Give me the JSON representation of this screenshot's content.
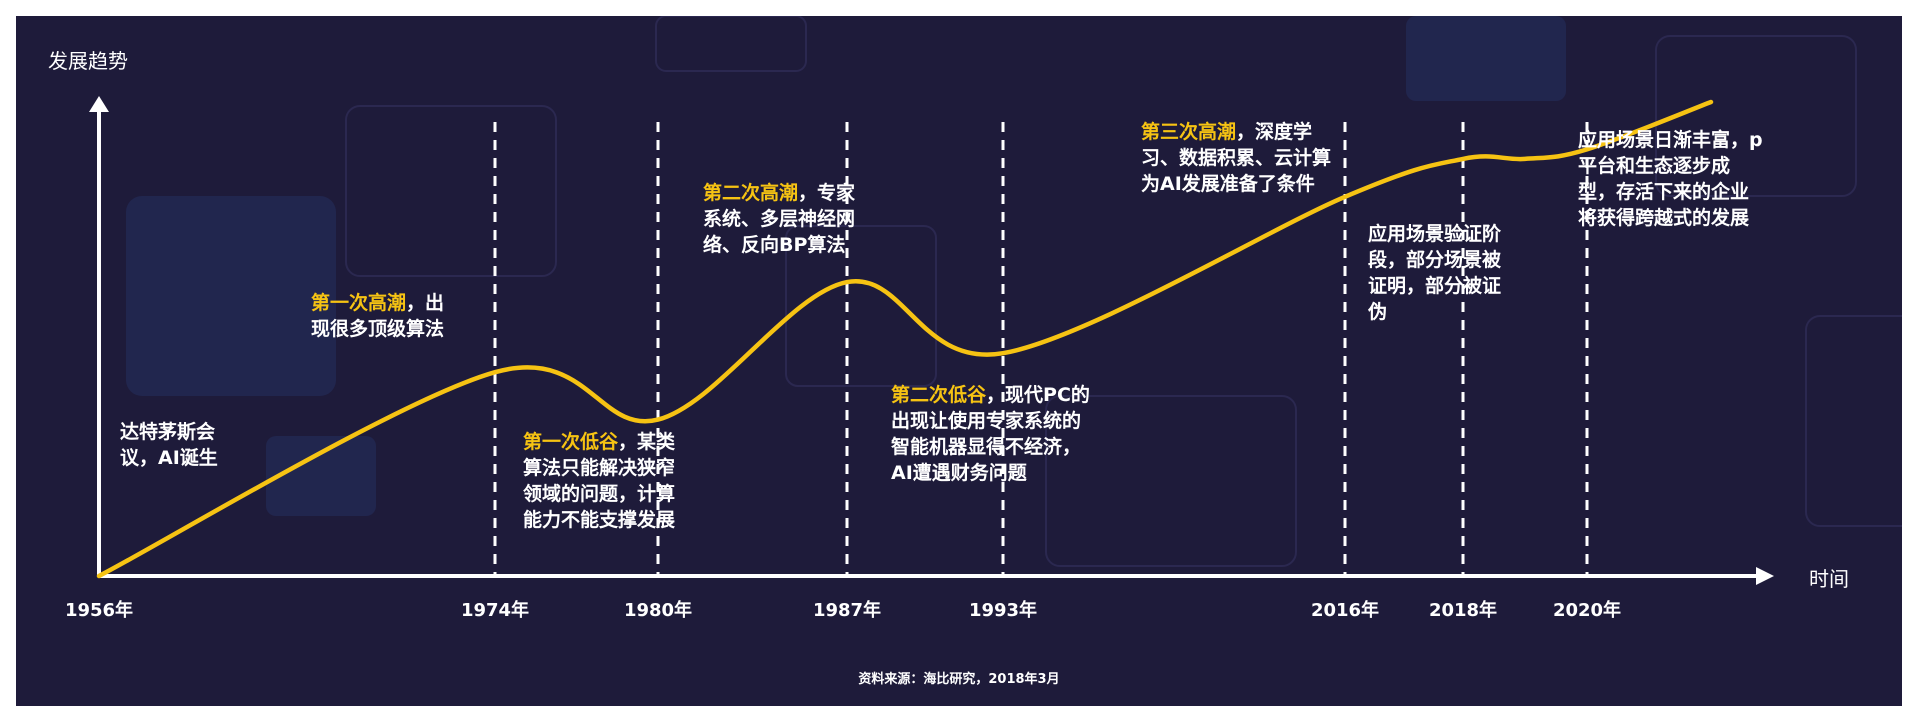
{
  "chart_data": {
    "type": "line",
    "ylabel": "发展趋势",
    "xlabel": "时间",
    "x_ticks": [
      "1956年",
      "1974年",
      "1980年",
      "1987年",
      "1993年",
      "2016年",
      "2018年",
      "2020年"
    ],
    "dashed_markers_at": [
      "1974年",
      "1980年",
      "1987年",
      "1993年",
      "2016年",
      "2018年",
      "2020年"
    ],
    "trend": [
      {
        "x": 1956,
        "y": 0
      },
      {
        "x": 1974,
        "y": 43
      },
      {
        "x": 1980,
        "y": 33
      },
      {
        "x": 1987,
        "y": 62
      },
      {
        "x": 1993,
        "y": 47
      },
      {
        "x": 2016,
        "y": 80
      },
      {
        "x": 2018,
        "y": 88
      },
      {
        "x": 2019,
        "y": 88
      },
      {
        "x": 2020,
        "y": 90
      },
      {
        "x": 2022,
        "y": 100
      }
    ],
    "ylim": [
      0,
      100
    ],
    "line_color": "#f6c313",
    "annotations": [
      {
        "lines": [
          [
            {
              "t": "达特茅斯会",
              "hl": false
            }
          ],
          [
            {
              "t": "议，AI诞生",
              "hl": false
            }
          ]
        ]
      },
      {
        "lines": [
          [
            {
              "t": "第一次高潮",
              "hl": true
            },
            {
              "t": "，出",
              "hl": false
            }
          ],
          [
            {
              "t": "现很多顶级算法",
              "hl": false
            }
          ]
        ]
      },
      {
        "lines": [
          [
            {
              "t": "第一次低谷",
              "hl": true
            },
            {
              "t": "，某类",
              "hl": false
            }
          ],
          [
            {
              "t": "算法只能解决狭窄",
              "hl": false
            }
          ],
          [
            {
              "t": "领域的问题，计算",
              "hl": false
            }
          ],
          [
            {
              "t": "能力不能支撑发展",
              "hl": false
            }
          ]
        ]
      },
      {
        "lines": [
          [
            {
              "t": "第二次高潮",
              "hl": true
            },
            {
              "t": "，专家",
              "hl": false
            }
          ],
          [
            {
              "t": "系统、多层神经网",
              "hl": false
            }
          ],
          [
            {
              "t": "络、反向BP算法",
              "hl": false
            }
          ]
        ]
      },
      {
        "lines": [
          [
            {
              "t": "第二次低谷",
              "hl": true
            },
            {
              "t": "，现代PC的",
              "hl": false
            }
          ],
          [
            {
              "t": "出现让使用专家系统的",
              "hl": false
            }
          ],
          [
            {
              "t": "智能机器显得不经济，",
              "hl": false
            }
          ],
          [
            {
              "t": "AI遭遇财务问题",
              "hl": false
            }
          ]
        ]
      },
      {
        "lines": [
          [
            {
              "t": "第三次高潮",
              "hl": true
            },
            {
              "t": "，深度学",
              "hl": false
            }
          ],
          [
            {
              "t": "习、数据积累、云计算",
              "hl": false
            }
          ],
          [
            {
              "t": "为AI发展准备了条件",
              "hl": false
            }
          ]
        ]
      },
      {
        "lines": [
          [
            {
              "t": "应用场景验证阶",
              "hl": false
            }
          ],
          [
            {
              "t": "段，部分场景被",
              "hl": false
            }
          ],
          [
            {
              "t": "证明，部分被证",
              "hl": false
            }
          ],
          [
            {
              "t": "伪",
              "hl": false
            }
          ]
        ]
      },
      {
        "lines": [
          [
            {
              "t": "应用场景日渐丰富，p",
              "hl": false
            }
          ],
          [
            {
              "t": "平台和生态逐步成",
              "hl": false
            }
          ],
          [
            {
              "t": "型，存活下来的企业",
              "hl": false
            }
          ],
          [
            {
              "t": "将获得跨越式的发展",
              "hl": false
            }
          ]
        ]
      }
    ],
    "source": "资料来源：海比研究，2018年3月"
  },
  "colors": {
    "background": "#1e1b3a",
    "highlight": "#f6c313",
    "text": "#ffffff"
  }
}
